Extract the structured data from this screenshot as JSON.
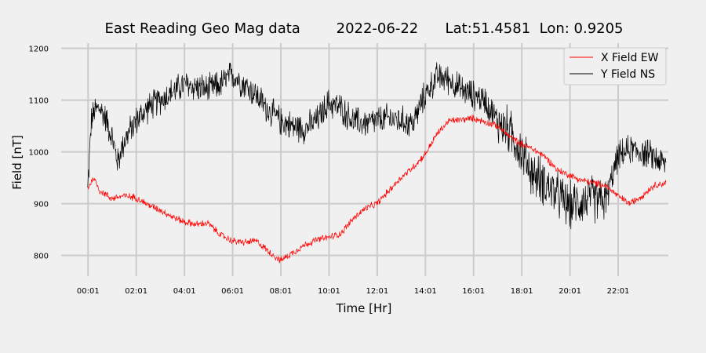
{
  "chart_data": {
    "type": "line",
    "title": "East Reading Geo Mag data        2022-06-22      Lat:51.4581  Lon: 0.9205",
    "xlabel": "Time  [Hr]",
    "ylabel": "Field  [nT]",
    "x_tick_labels": [
      "00:01",
      "02:01",
      "04:01",
      "06:01",
      "08:01",
      "10:01",
      "12:01",
      "14:01",
      "16:01",
      "18:01",
      "20:01",
      "22:01"
    ],
    "x_range_hours": [
      -1.1,
      24.1
    ],
    "ylim": [
      760,
      1210
    ],
    "y_ticks": [
      800,
      900,
      1000,
      1100,
      1200
    ],
    "y_tick_labels": [
      "800",
      "900",
      "1000",
      "1100",
      "1200"
    ],
    "grid": true,
    "legend_position": "top-right",
    "series": [
      {
        "name": "X Field EW",
        "color": "#ff0000",
        "x_hours": [
          0.0,
          0.25,
          0.5,
          1.0,
          1.5,
          2.0,
          2.5,
          3.0,
          3.5,
          4.0,
          4.5,
          5.0,
          5.5,
          6.0,
          6.5,
          7.0,
          7.5,
          8.0,
          8.5,
          9.0,
          9.5,
          10.0,
          10.5,
          11.0,
          11.5,
          12.0,
          12.5,
          13.0,
          13.5,
          14.0,
          14.5,
          15.0,
          15.5,
          16.0,
          16.5,
          17.0,
          17.5,
          18.0,
          18.5,
          19.0,
          19.5,
          20.0,
          20.5,
          21.0,
          21.5,
          22.0,
          22.5,
          23.0,
          23.5,
          24.0
        ],
        "values": [
          930,
          950,
          925,
          910,
          915,
          912,
          898,
          888,
          875,
          865,
          860,
          862,
          840,
          828,
          825,
          828,
          808,
          790,
          805,
          820,
          830,
          835,
          842,
          870,
          890,
          900,
          925,
          950,
          970,
          995,
          1035,
          1060,
          1062,
          1065,
          1058,
          1050,
          1030,
          1015,
          1005,
          990,
          965,
          955,
          945,
          940,
          935,
          915,
          900,
          915,
          935,
          940
        ]
      },
      {
        "name": "Y Field NS",
        "color": "#000000",
        "x_hours": [
          0.0,
          0.15,
          0.3,
          0.5,
          0.75,
          1.0,
          1.25,
          1.5,
          2.0,
          2.5,
          3.0,
          3.5,
          4.0,
          4.5,
          5.0,
          5.5,
          6.0,
          6.5,
          7.0,
          7.5,
          8.0,
          8.5,
          9.0,
          9.5,
          10.0,
          10.5,
          11.0,
          11.5,
          12.0,
          12.5,
          13.0,
          13.5,
          14.0,
          14.5,
          15.0,
          15.5,
          16.0,
          16.5,
          17.0,
          17.5,
          18.0,
          18.5,
          19.0,
          19.5,
          20.0,
          20.5,
          21.0,
          21.5,
          22.0,
          22.5,
          23.0,
          23.5,
          24.0
        ],
        "values": [
          925,
          1060,
          1080,
          1085,
          1065,
          1030,
          980,
          1020,
          1060,
          1085,
          1100,
          1115,
          1130,
          1125,
          1120,
          1130,
          1150,
          1130,
          1110,
          1080,
          1060,
          1050,
          1045,
          1060,
          1095,
          1085,
          1060,
          1055,
          1060,
          1065,
          1060,
          1055,
          1110,
          1145,
          1140,
          1120,
          1110,
          1100,
          1060,
          1040,
          1000,
          955,
          940,
          915,
          895,
          905,
          910,
          905,
          990,
          1005,
          1000,
          990,
          975
        ]
      }
    ]
  }
}
